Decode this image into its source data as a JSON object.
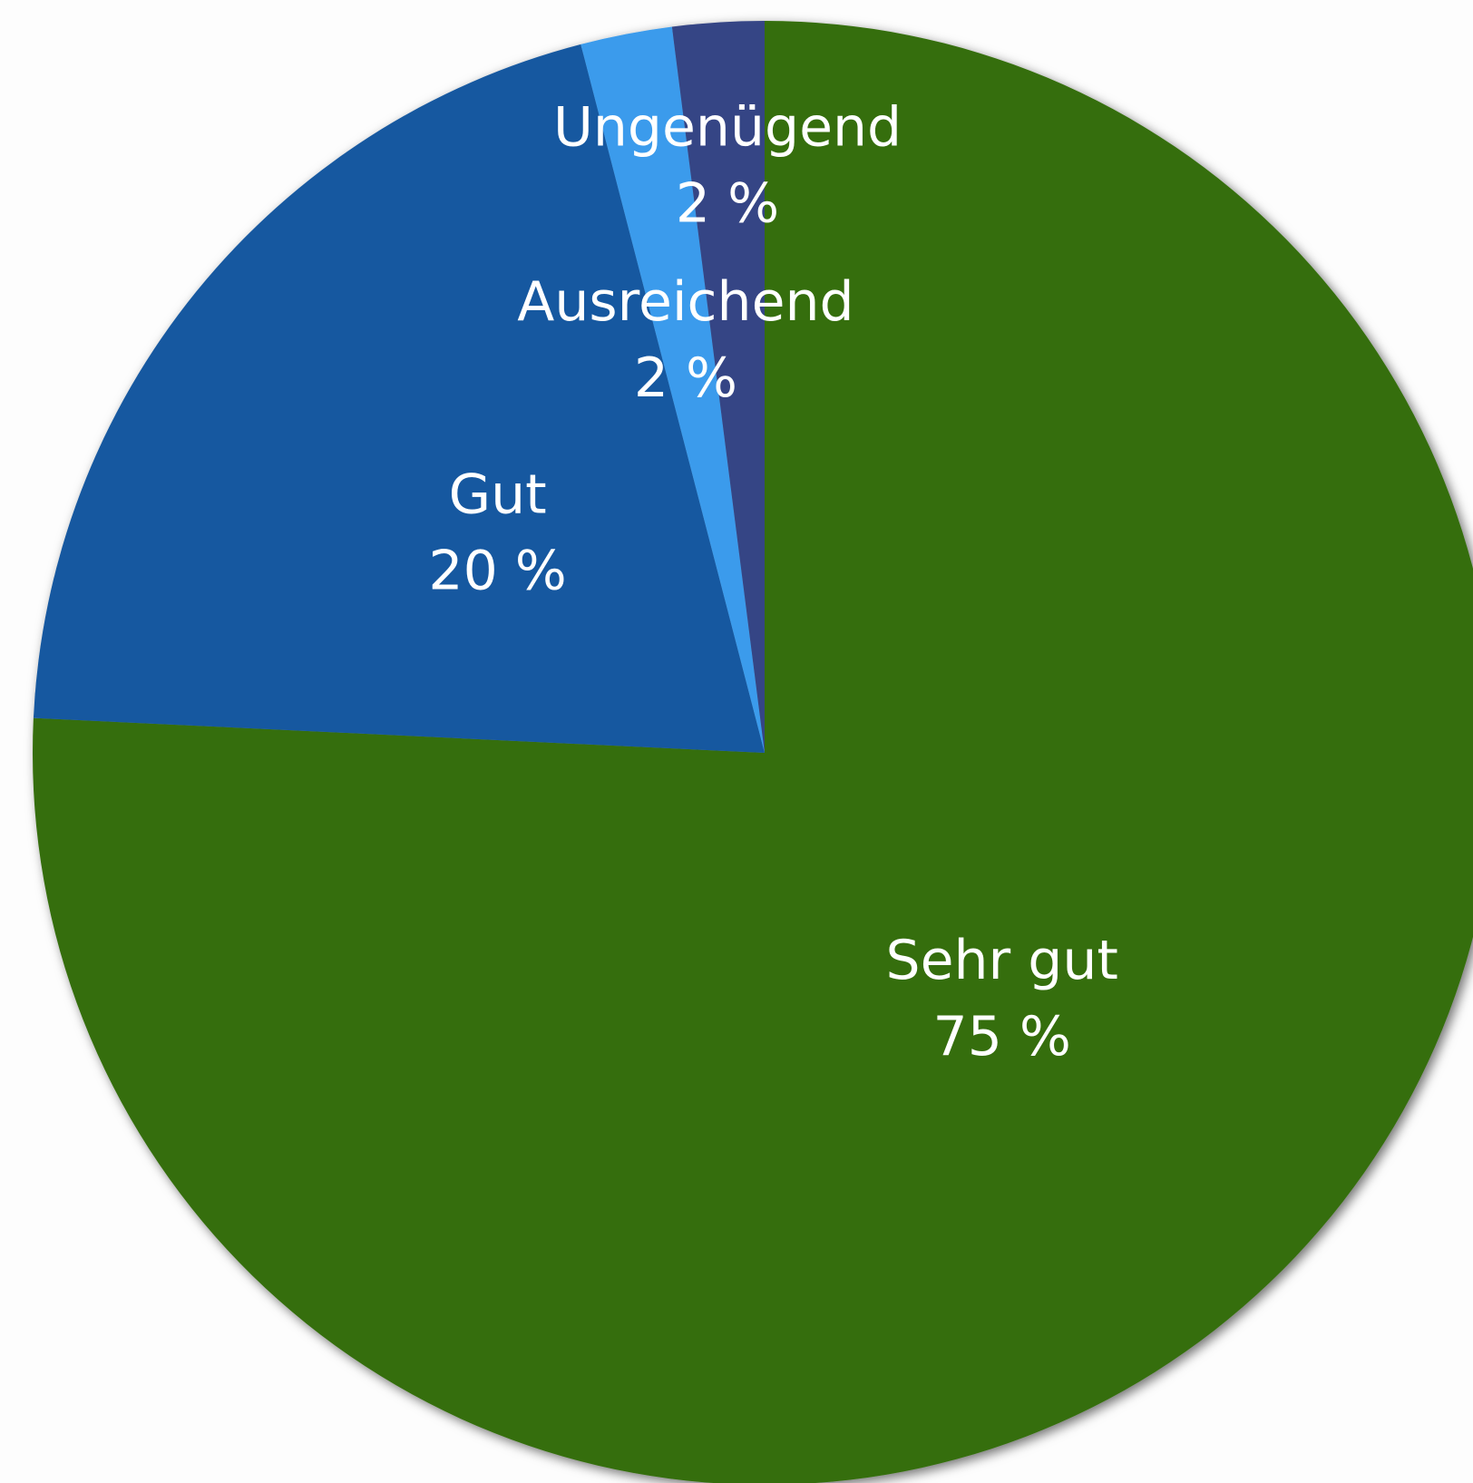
{
  "chart_data": {
    "type": "pie",
    "categories": [
      "Sehr gut",
      "Gut",
      "Ausreichend",
      "Ungenügend"
    ],
    "values": [
      75,
      20,
      2,
      2
    ],
    "value_labels": [
      "75 %",
      "20 %",
      "2 %",
      "2 %"
    ],
    "colors": [
      "#346e0b",
      "#1659a0",
      "#3a9bec",
      "#354585"
    ]
  }
}
